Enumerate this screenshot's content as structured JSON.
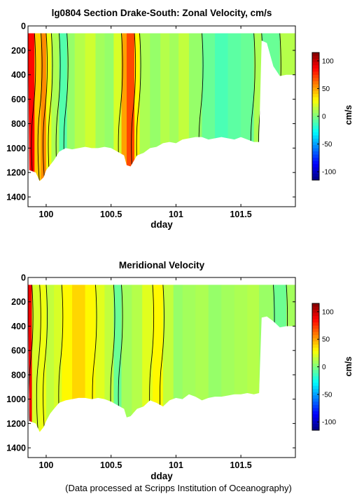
{
  "footer": "(Data processed at Scripps Institution of Oceanography)",
  "chart_data": [
    {
      "type": "heatmap",
      "title": "lg0804 Section Drake-South: Zonal Velocity, cm/s",
      "xlabel": "dday",
      "ylabel": "",
      "xlim": [
        99.86,
        101.92
      ],
      "ylim": [
        1480,
        0
      ],
      "x_ticks": [
        100,
        100.5,
        101,
        101.5
      ],
      "x_tick_labels": [
        "100",
        "100.5",
        "101",
        "101.5"
      ],
      "y_ticks": [
        0,
        200,
        400,
        600,
        800,
        1000,
        1200,
        1400
      ],
      "y_tick_labels": [
        "0",
        "200",
        "400",
        "600",
        "800",
        "1000",
        "1200",
        "1400"
      ],
      "colorbar": {
        "label": "cm/s",
        "range": [
          -115,
          115
        ],
        "ticks": [
          100,
          50,
          0,
          -50,
          -100
        ],
        "tick_labels": [
          "100",
          "50",
          "0",
          "-50",
          "-100"
        ]
      },
      "depth_top": 60,
      "bottom_profile": [
        [
          99.87,
          1180
        ],
        [
          99.92,
          1200
        ],
        [
          99.95,
          1270
        ],
        [
          99.98,
          1240
        ],
        [
          100.0,
          1180
        ],
        [
          100.03,
          1140
        ],
        [
          100.06,
          1100
        ],
        [
          100.1,
          1030
        ],
        [
          100.15,
          1000
        ],
        [
          100.2,
          1010
        ],
        [
          100.25,
          1000
        ],
        [
          100.3,
          990
        ],
        [
          100.35,
          1000
        ],
        [
          100.4,
          1000
        ],
        [
          100.45,
          990
        ],
        [
          100.5,
          1000
        ],
        [
          100.55,
          1030
        ],
        [
          100.6,
          1060
        ],
        [
          100.62,
          1140
        ],
        [
          100.65,
          1150
        ],
        [
          100.7,
          1060
        ],
        [
          100.75,
          1040
        ],
        [
          100.8,
          1000
        ],
        [
          100.85,
          990
        ],
        [
          100.9,
          960
        ],
        [
          100.95,
          950
        ],
        [
          101.0,
          960
        ],
        [
          101.05,
          930
        ],
        [
          101.1,
          920
        ],
        [
          101.15,
          910
        ],
        [
          101.2,
          910
        ],
        [
          101.25,
          930
        ],
        [
          101.3,
          920
        ],
        [
          101.35,
          910
        ],
        [
          101.4,
          920
        ],
        [
          101.45,
          930
        ],
        [
          101.5,
          910
        ],
        [
          101.55,
          930
        ],
        [
          101.6,
          950
        ],
        [
          101.64,
          950
        ],
        [
          101.66,
          120
        ],
        [
          101.7,
          140
        ],
        [
          101.75,
          330
        ],
        [
          101.8,
          410
        ],
        [
          101.85,
          400
        ],
        [
          101.9,
          400
        ]
      ],
      "columns": [
        [
          99.86,
          99.91,
          85
        ],
        [
          99.91,
          99.96,
          40
        ],
        [
          99.96,
          100.0,
          55
        ],
        [
          100.0,
          100.04,
          25
        ],
        [
          100.04,
          100.1,
          10
        ],
        [
          100.1,
          100.16,
          -10
        ],
        [
          100.16,
          100.22,
          5
        ],
        [
          100.22,
          100.3,
          12
        ],
        [
          100.3,
          100.38,
          18
        ],
        [
          100.38,
          100.45,
          8
        ],
        [
          100.45,
          100.52,
          5
        ],
        [
          100.52,
          100.58,
          20
        ],
        [
          100.58,
          100.62,
          50
        ],
        [
          100.62,
          100.68,
          70
        ],
        [
          100.68,
          100.72,
          30
        ],
        [
          100.72,
          100.8,
          10
        ],
        [
          100.8,
          100.88,
          5
        ],
        [
          100.88,
          100.95,
          12
        ],
        [
          100.95,
          101.02,
          8
        ],
        [
          101.02,
          101.1,
          15
        ],
        [
          101.1,
          101.2,
          5
        ],
        [
          101.2,
          101.3,
          -5
        ],
        [
          101.3,
          101.4,
          -12
        ],
        [
          101.4,
          101.5,
          -8
        ],
        [
          101.5,
          101.6,
          -5
        ],
        [
          101.6,
          101.66,
          10
        ],
        [
          101.66,
          101.8,
          -5
        ],
        [
          101.8,
          101.92,
          12
        ]
      ]
    },
    {
      "type": "heatmap",
      "title": "Meridional Velocity",
      "xlabel": "dday",
      "ylabel": "",
      "xlim": [
        99.86,
        101.92
      ],
      "ylim": [
        1480,
        0
      ],
      "x_ticks": [
        100,
        100.5,
        101,
        101.5
      ],
      "x_tick_labels": [
        "100",
        "100.5",
        "101",
        "101.5"
      ],
      "y_ticks": [
        0,
        200,
        400,
        600,
        800,
        1000,
        1200,
        1400
      ],
      "y_tick_labels": [
        "0",
        "200",
        "400",
        "600",
        "800",
        "1000",
        "1200",
        "1400"
      ],
      "colorbar": {
        "label": "cm/s",
        "range": [
          -115,
          115
        ],
        "ticks": [
          100,
          50,
          0,
          -50,
          -100
        ],
        "tick_labels": [
          "100",
          "50",
          "0",
          "-50",
          "-100"
        ]
      },
      "depth_top": 60,
      "bottom_profile": [
        [
          99.87,
          1180
        ],
        [
          99.92,
          1200
        ],
        [
          99.95,
          1270
        ],
        [
          99.98,
          1230
        ],
        [
          100.0,
          1180
        ],
        [
          100.03,
          1120
        ],
        [
          100.06,
          1080
        ],
        [
          100.1,
          1030
        ],
        [
          100.15,
          1010
        ],
        [
          100.2,
          1000
        ],
        [
          100.25,
          990
        ],
        [
          100.3,
          990
        ],
        [
          100.35,
          1000
        ],
        [
          100.4,
          990
        ],
        [
          100.45,
          1000
        ],
        [
          100.5,
          1020
        ],
        [
          100.55,
          1050
        ],
        [
          100.6,
          1080
        ],
        [
          100.62,
          1150
        ],
        [
          100.65,
          1140
        ],
        [
          100.7,
          1080
        ],
        [
          100.75,
          1060
        ],
        [
          100.8,
          1010
        ],
        [
          100.85,
          1030
        ],
        [
          100.9,
          1060
        ],
        [
          100.95,
          1010
        ],
        [
          101.0,
          990
        ],
        [
          101.05,
          1000
        ],
        [
          101.1,
          960
        ],
        [
          101.15,
          980
        ],
        [
          101.2,
          1010
        ],
        [
          101.25,
          990
        ],
        [
          101.3,
          980
        ],
        [
          101.35,
          980
        ],
        [
          101.4,
          970
        ],
        [
          101.45,
          960
        ],
        [
          101.5,
          960
        ],
        [
          101.55,
          950
        ],
        [
          101.6,
          960
        ],
        [
          101.64,
          950
        ],
        [
          101.66,
          330
        ],
        [
          101.7,
          320
        ],
        [
          101.75,
          360
        ],
        [
          101.8,
          410
        ],
        [
          101.85,
          400
        ],
        [
          101.9,
          400
        ]
      ],
      "columns": [
        [
          99.86,
          99.89,
          90
        ],
        [
          99.89,
          99.95,
          20
        ],
        [
          99.95,
          100.0,
          25
        ],
        [
          100.0,
          100.06,
          15
        ],
        [
          100.06,
          100.12,
          20
        ],
        [
          100.12,
          100.2,
          30
        ],
        [
          100.2,
          100.3,
          38
        ],
        [
          100.3,
          100.38,
          30
        ],
        [
          100.38,
          100.45,
          22
        ],
        [
          100.45,
          100.52,
          15
        ],
        [
          100.52,
          100.58,
          -5
        ],
        [
          100.58,
          100.66,
          8
        ],
        [
          100.66,
          100.74,
          12
        ],
        [
          100.74,
          100.82,
          22
        ],
        [
          100.82,
          100.9,
          30
        ],
        [
          100.9,
          100.98,
          15
        ],
        [
          100.98,
          101.05,
          5
        ],
        [
          101.05,
          101.15,
          8
        ],
        [
          101.15,
          101.25,
          10
        ],
        [
          101.25,
          101.35,
          5
        ],
        [
          101.35,
          101.45,
          8
        ],
        [
          101.45,
          101.55,
          10
        ],
        [
          101.55,
          101.64,
          12
        ],
        [
          101.64,
          101.75,
          6
        ],
        [
          101.75,
          101.85,
          -4
        ],
        [
          101.85,
          101.92,
          8
        ]
      ]
    }
  ]
}
